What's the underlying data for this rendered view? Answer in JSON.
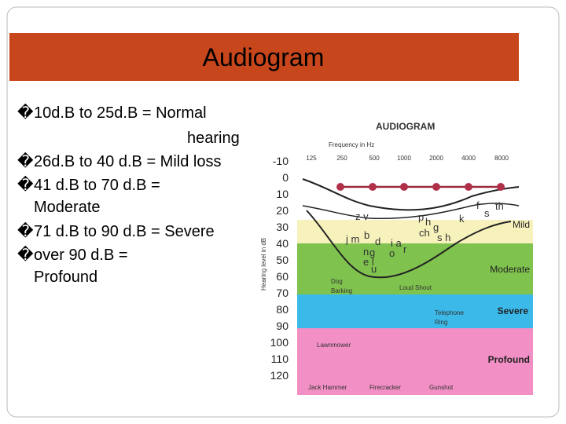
{
  "title": "Audiogram",
  "bullet": "�",
  "items": [
    {
      "lines": [
        "10d.B to 25d.B =  Normal",
        "hearing"
      ]
    },
    {
      "lines": [
        "26d.B to 40 d.B = Mild loss"
      ]
    },
    {
      "lines": [
        "41 d.B to 70 d.B =",
        "Moderate"
      ]
    },
    {
      "lines": [
        "71 d.B to 90 d.B = Severe"
      ]
    },
    {
      "lines": [
        "over 90 d.B =",
        "Profound"
      ]
    }
  ],
  "figure": {
    "heading": "AUDIOGRAM",
    "x_axis_label": "Frequency in Hz",
    "frequencies": [
      "125",
      "250",
      "500",
      "1000",
      "2000",
      "4000",
      "8000"
    ],
    "y_axis_label": "Hearing level in dB",
    "levels": [
      "-10",
      "0",
      "10",
      "20",
      "30",
      "40",
      "50",
      "60",
      "70",
      "80",
      "90",
      "100",
      "110",
      "120"
    ],
    "zones": [
      "Mild",
      "Moderate",
      "Severe",
      "Profound"
    ],
    "sounds": [
      {
        "lines": [
          "Dog",
          "Barking"
        ]
      },
      {
        "lines": [
          "Loud Shout"
        ]
      },
      {
        "lines": [
          "Telephone",
          "Ring"
        ]
      },
      {
        "lines": [
          "Lawnmower"
        ]
      },
      {
        "lines": [
          "Jack Hammer"
        ]
      },
      {
        "lines": [
          "Firecracker"
        ]
      },
      {
        "lines": [
          "Gunshot"
        ]
      }
    ],
    "phonemes": [
      "z v",
      "j m",
      "b",
      "d",
      "n",
      "g",
      "e l",
      "u",
      "i a",
      "o",
      "r",
      "p",
      "h",
      "g",
      "ch",
      "s h",
      "k",
      "f",
      "s",
      "th"
    ]
  }
}
